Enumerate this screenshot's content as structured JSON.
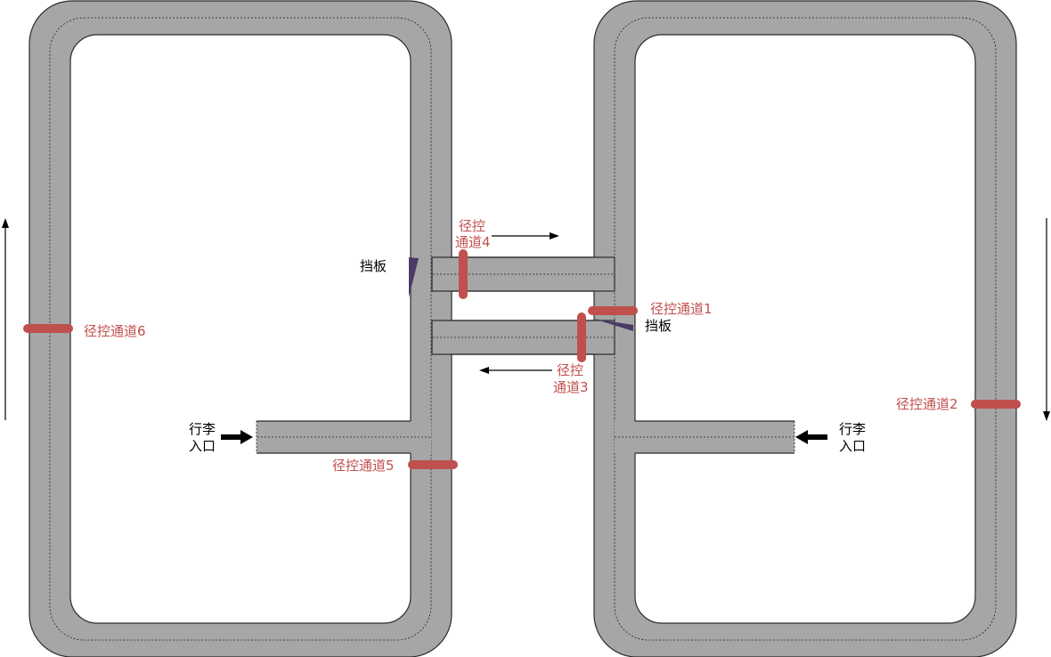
{
  "labels": {
    "gate1": "径控通道1",
    "gate2": "径控通道2",
    "gate3_line1": "径控",
    "gate3_line2": "通道3",
    "gate4_line1": "径控",
    "gate4_line2": "通道4",
    "gate5": "径控通道5",
    "gate6": "径控通道6",
    "baffle_left": "挡板",
    "baffle_right": "挡板",
    "entry_left_line1": "行李",
    "entry_left_line2": "入口",
    "entry_right_line1": "行李",
    "entry_right_line2": "入口"
  },
  "colors": {
    "belt": "#a6a6a6",
    "gate": "#c0504d",
    "baffle": "#4b3a66"
  }
}
